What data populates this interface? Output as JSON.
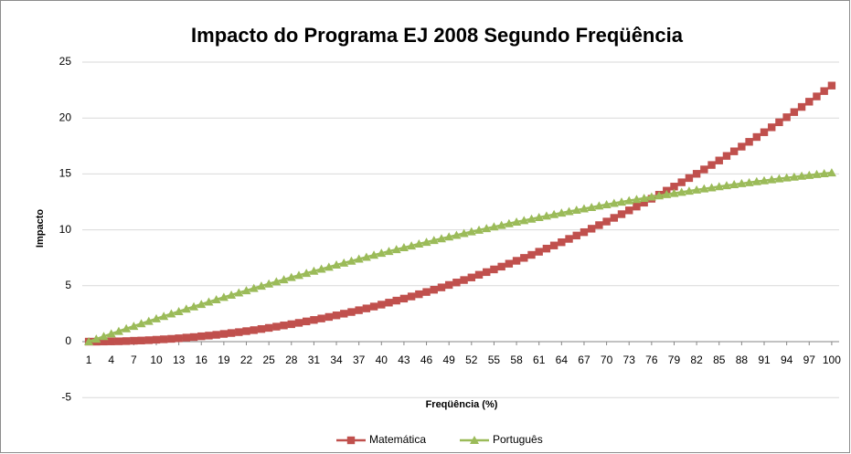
{
  "chart_data": {
    "type": "line",
    "title": "Impacto do Programa EJ 2008 Segundo Freqüência",
    "x_label": "Freqüência (%)",
    "y_label": "Impacto",
    "categories": [
      "1",
      null,
      null,
      "4",
      null,
      null,
      "7",
      null,
      null,
      "10",
      null,
      null,
      "13",
      null,
      null,
      "16",
      null,
      null,
      "19",
      null,
      null,
      "22",
      null,
      null,
      "25",
      null,
      null,
      "28",
      null,
      null,
      "31",
      null,
      null,
      "34",
      null,
      null,
      "37",
      null,
      null,
      "40",
      null,
      null,
      "43",
      null,
      null,
      "46",
      null,
      null,
      "49",
      null,
      null,
      "52",
      null,
      null,
      "55",
      null,
      null,
      "58",
      null,
      null,
      "61",
      null,
      null,
      "64",
      null,
      null,
      "67",
      null,
      null,
      "70",
      null,
      null,
      "73",
      null,
      null,
      "76",
      null,
      null,
      "79",
      null,
      null,
      "82",
      null,
      null,
      "85",
      null,
      null,
      "88",
      null,
      null,
      "91",
      null,
      null,
      "94",
      null,
      null,
      "97",
      null,
      null,
      "100"
    ],
    "series": [
      {
        "name": "Matemática",
        "color": "#c0504d",
        "marker": "square",
        "values": [
          0,
          0,
          0.01,
          0.02,
          0.03,
          0.05,
          0.08,
          0.1,
          0.13,
          0.17,
          0.21,
          0.25,
          0.3,
          0.36,
          0.41,
          0.48,
          0.54,
          0.61,
          0.69,
          0.77,
          0.85,
          0.94,
          1.03,
          1.13,
          1.23,
          1.34,
          1.45,
          1.56,
          1.68,
          1.81,
          1.94,
          2.07,
          2.21,
          2.35,
          2.5,
          2.65,
          2.81,
          2.97,
          3.14,
          3.31,
          3.49,
          3.67,
          3.85,
          4.04,
          4.24,
          4.44,
          4.64,
          4.85,
          5.07,
          5.29,
          5.51,
          5.74,
          5.98,
          6.22,
          6.46,
          6.71,
          6.97,
          7.23,
          7.49,
          7.76,
          8.04,
          8.32,
          8.6,
          8.89,
          9.19,
          9.49,
          9.79,
          10.1,
          10.42,
          10.74,
          11.07,
          11.4,
          11.74,
          12.08,
          12.43,
          12.78,
          13.14,
          13.5,
          13.87,
          14.25,
          14.63,
          15.01,
          15.4,
          15.8,
          16.2,
          16.61,
          17.02,
          17.44,
          17.87,
          18.3,
          18.73,
          19.17,
          19.62,
          20.07,
          20.53,
          20.99,
          21.46,
          21.93,
          22.41,
          22.9
        ]
      },
      {
        "name": "Português",
        "color": "#9bbb59",
        "marker": "triangle",
        "values": [
          0,
          0.23,
          0.47,
          0.7,
          0.93,
          1.16,
          1.38,
          1.61,
          1.83,
          2.05,
          2.27,
          2.49,
          2.7,
          2.92,
          3.13,
          3.34,
          3.55,
          3.76,
          3.97,
          4.17,
          4.37,
          4.57,
          4.77,
          4.97,
          5.17,
          5.36,
          5.55,
          5.75,
          5.93,
          6.12,
          6.31,
          6.49,
          6.67,
          6.86,
          7.04,
          7.21,
          7.39,
          7.56,
          7.74,
          7.91,
          8.08,
          8.24,
          8.41,
          8.57,
          8.74,
          8.9,
          9.06,
          9.21,
          9.37,
          9.52,
          9.68,
          9.83,
          9.98,
          10.12,
          10.27,
          10.41,
          10.56,
          10.7,
          10.84,
          10.97,
          11.11,
          11.24,
          11.38,
          11.51,
          11.64,
          11.76,
          11.89,
          12.01,
          12.14,
          12.26,
          12.38,
          12.49,
          12.61,
          12.72,
          12.83,
          12.95,
          13.05,
          13.16,
          13.27,
          13.37,
          13.47,
          13.57,
          13.67,
          13.77,
          13.87,
          13.96,
          14.05,
          14.14,
          14.23,
          14.32,
          14.4,
          14.49,
          14.57,
          14.65,
          14.73,
          14.81,
          14.88,
          14.96,
          15.03,
          15.1
        ]
      }
    ],
    "ylim": [
      -5,
      25
    ],
    "yticks": [
      -5,
      0,
      5,
      10,
      15,
      20,
      25
    ],
    "grid": true,
    "legend": "bottom"
  }
}
